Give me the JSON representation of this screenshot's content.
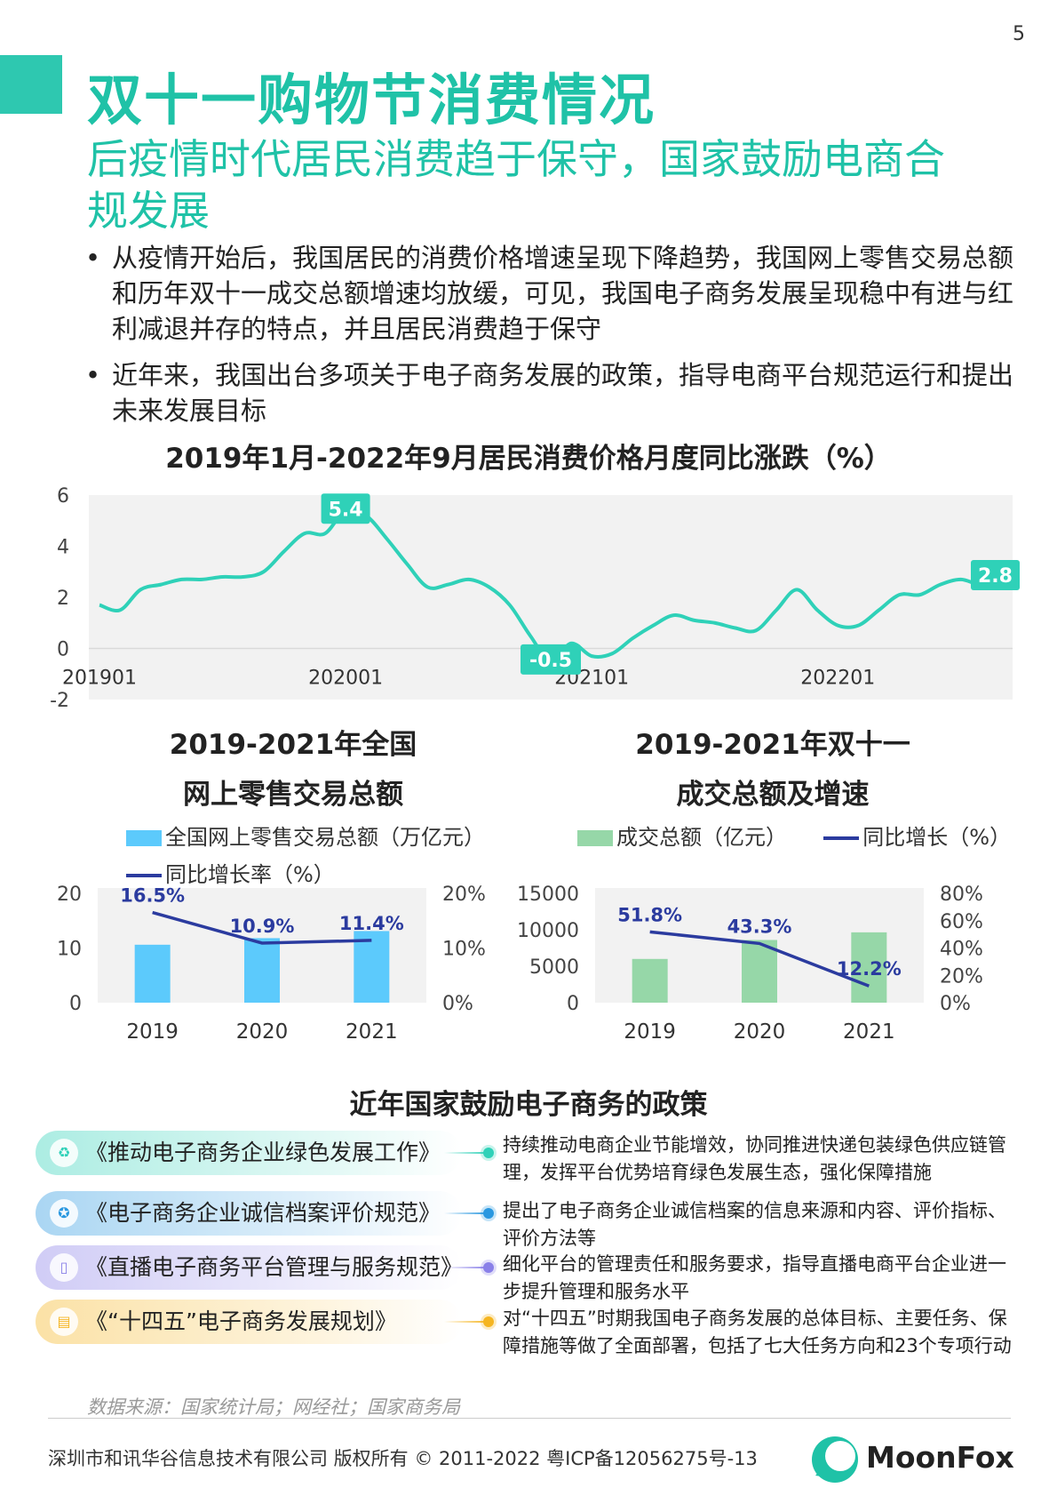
{
  "page_number": "5",
  "title": "双十一购物节消费情况",
  "subtitle": "后疫情时代居民消费趋于保守，国家鼓励电商合规发展",
  "bullets": [
    "从疫情开始后，我国居民的消费价格增速呈现下降趋势，我国网上零售交易总额和历年双十一成交总额增速均放缓，可见，我国电子商务发展呈现稳中有进与红利减退并存的特点，并且居民消费趋于保守",
    "近年来，我国出台多项关于电子商务发展的政策，指导电商平台规范运行和提出未来发展目标"
  ],
  "bullet_marker": "•",
  "colors": {
    "accent": "#1fc2a7",
    "line_teal": "#2fd1b8",
    "bar_blue": "#5ccafc",
    "bar_green": "#96d7a8",
    "line_navy": "#2b3b9f",
    "plot_bg": "#f2f2f2"
  },
  "chart_data": [
    {
      "type": "line",
      "title": "2019年1月-2022年9月居民消费价格月度同比涨跌（%）",
      "xlabel": "",
      "ylabel": "",
      "ylim": [
        -2,
        6
      ],
      "yticks": [
        "6",
        "4",
        "2",
        "0",
        "-2"
      ],
      "xtick_labels": [
        "201901",
        "202001",
        "202101",
        "202201"
      ],
      "x": [
        "201901",
        "201902",
        "201903",
        "201904",
        "201905",
        "201906",
        "201907",
        "201908",
        "201909",
        "201910",
        "201911",
        "201912",
        "202001",
        "202002",
        "202003",
        "202004",
        "202005",
        "202006",
        "202007",
        "202008",
        "202009",
        "202010",
        "202011",
        "202012",
        "202101",
        "202102",
        "202103",
        "202104",
        "202105",
        "202106",
        "202107",
        "202108",
        "202109",
        "202110",
        "202111",
        "202112",
        "202201",
        "202202",
        "202203",
        "202204",
        "202205",
        "202206",
        "202207",
        "202208",
        "202209"
      ],
      "values": [
        1.7,
        1.5,
        2.3,
        2.5,
        2.7,
        2.7,
        2.8,
        2.8,
        3.0,
        3.8,
        4.5,
        4.5,
        5.4,
        5.2,
        4.3,
        3.3,
        2.4,
        2.5,
        2.7,
        2.4,
        1.7,
        0.5,
        -0.5,
        0.2,
        -0.3,
        -0.2,
        0.4,
        0.9,
        1.3,
        1.1,
        1.0,
        0.8,
        0.7,
        1.5,
        2.3,
        1.5,
        0.9,
        0.9,
        1.5,
        2.1,
        2.1,
        2.5,
        2.7,
        2.5,
        2.8
      ],
      "annotations": [
        {
          "x": "202001",
          "label": "5.4"
        },
        {
          "x": "202011",
          "label": "-0.5"
        },
        {
          "x": "202209",
          "label": "2.8"
        }
      ],
      "grid": false
    },
    {
      "type": "bar",
      "title": "2019-2021年全国网上零售交易总额",
      "categories": [
        "2019",
        "2020",
        "2021"
      ],
      "series": [
        {
          "name": "全国网上零售交易总额（万亿元）",
          "values": [
            10.6,
            11.8,
            13.1
          ]
        },
        {
          "name": "同比增长率（%）",
          "values": [
            16.5,
            10.9,
            11.4
          ],
          "labels": [
            "16.5%",
            "10.9%",
            "11.4%"
          ],
          "axis": "right"
        }
      ],
      "ylim_left": [
        0,
        20
      ],
      "yticks_left": [
        "20",
        "10",
        "0"
      ],
      "ylim_right": [
        0,
        20
      ],
      "yticks_right": [
        "20%",
        "10%",
        "0%"
      ]
    },
    {
      "type": "bar",
      "title": "2019-2021年双十一成交总额及增速",
      "categories": [
        "2019",
        "2020",
        "2021"
      ],
      "series": [
        {
          "name": "成交总额（亿元）",
          "values": [
            6000,
            8600,
            9650
          ]
        },
        {
          "name": "同比增长（%）",
          "values": [
            51.8,
            43.3,
            12.2
          ],
          "labels": [
            "51.8%",
            "43.3%",
            "12.2%"
          ],
          "axis": "right"
        }
      ],
      "ylim_left": [
        0,
        15000
      ],
      "yticks_left": [
        "15000",
        "10000",
        "5000",
        "0"
      ],
      "ylim_right": [
        0,
        80
      ],
      "yticks_right": [
        "80%",
        "60%",
        "40%",
        "20%",
        "0%"
      ]
    }
  ],
  "bar_chart_headings": [
    {
      "line1": "2019-2021年全国",
      "line2": "网上零售交易总额"
    },
    {
      "line1": "2019-2021年双十一",
      "line2": "成交总额及增速"
    }
  ],
  "policy_section": {
    "title": "近年国家鼓励电子商务的政策",
    "items": [
      {
        "name": "《推动电子商务企业绿色发展工作》",
        "icon": "recycle-icon",
        "glyph": "♻",
        "color": "#2fd1b8",
        "description": "持续推动电商企业节能增效，协同推进快递包装绿色供应链管理，发挥平台优势培育绿色发展生态，强化保障措施"
      },
      {
        "name": "《电子商务企业诚信档案评价规范》",
        "icon": "badge-icon",
        "glyph": "✪",
        "color": "#2a98e0",
        "description": "提出了电子商务企业诚信档案的信息来源和内容、评价指标、评价方法等"
      },
      {
        "name": "《直播电子商务平台管理与服务规范》",
        "icon": "phone-icon",
        "glyph": "▯",
        "color": "#8a80e8",
        "description": "细化平台的管理责任和服务要求，指导直播电商平台企业进一步提升管理和服务水平"
      },
      {
        "name": "《“十四五”电子商务发展规划》",
        "icon": "document-icon",
        "glyph": "▤",
        "color": "#f5b520",
        "description": "对“十四五”时期我国电子商务发展的总体目标、主要任务、保障措施等做了全面部署，包括了七大任务方向和23个专项行动"
      }
    ]
  },
  "source": "数据来源：国家统计局；网经社；国家商务局",
  "footer": {
    "copyright": "深圳市和讯华谷信息技术有限公司 版权所有 © 2011-2022 粤ICP备12056275号-13",
    "brand": "MoonFox"
  }
}
